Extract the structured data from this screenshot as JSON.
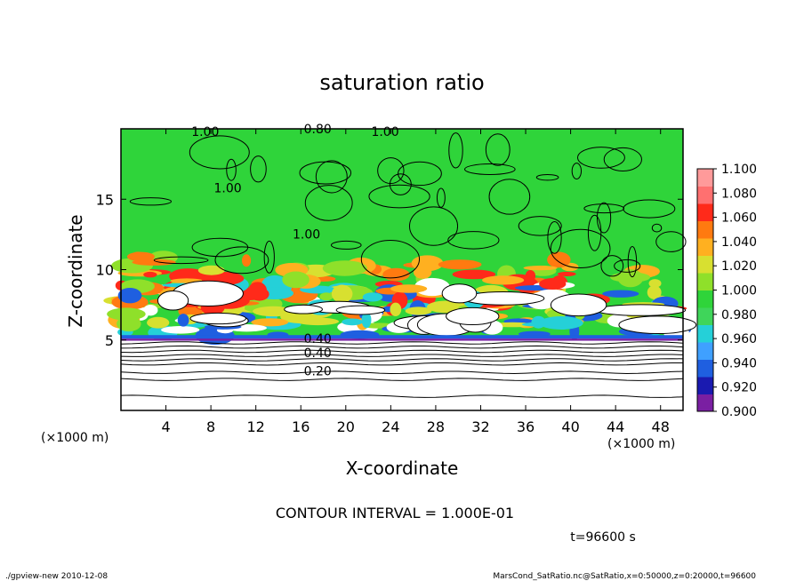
{
  "chart_data": {
    "type": "heatmap",
    "title": "saturation ratio",
    "xlabel": "X-coordinate",
    "ylabel": "Z-coordinate",
    "x_unit_left": "(×1000 m)",
    "x_unit_right": "(×1000 m)",
    "xlim": [
      0,
      50
    ],
    "ylim": [
      0,
      20
    ],
    "x_ticks": [
      4,
      8,
      12,
      16,
      20,
      24,
      28,
      32,
      36,
      40,
      44,
      48
    ],
    "y_ticks": [
      5,
      10,
      15
    ],
    "colorbar": {
      "min": 0.9,
      "max": 1.1,
      "labels": [
        "1.100",
        "1.080",
        "1.060",
        "1.040",
        "1.020",
        "1.000",
        "0.980",
        "0.960",
        "0.940",
        "0.920",
        "0.900"
      ],
      "colors": [
        "#7a1fa2",
        "#1a1ab0",
        "#1f5fe0",
        "#3fa0ff",
        "#25d0d8",
        "#3fd55a",
        "#2fd43a",
        "#8fe02a",
        "#d8e030",
        "#ffb020",
        "#ff7a10",
        "#ff2a1a",
        "#ff7070",
        "#ff9a9a"
      ]
    },
    "contour_labels": [
      "1.00",
      "0.80",
      "1.00",
      "1.00",
      "1.00",
      "0.40",
      "0.40",
      "0.20"
    ],
    "contour_levels_below": [
      0.1,
      0.2,
      0.3,
      0.4,
      0.5,
      0.6
    ],
    "contour_interval": "CONTOUR INTERVAL = 1.000E-01",
    "time": "t=96600 s"
  },
  "footer": {
    "left": "./gpview-new  2010-12-08",
    "right": "MarsCond_SatRatio.nc@SatRatio,x=0:50000,z=0:20000,t=96600"
  },
  "colors": {
    "green": "#2fd43a",
    "white": "#ffffff",
    "contour": "#000000"
  }
}
